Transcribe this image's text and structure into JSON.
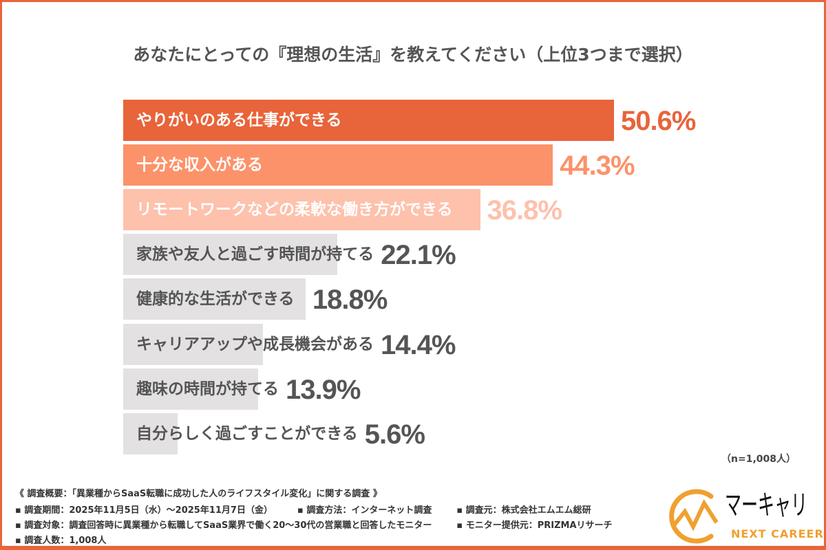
{
  "chart_data": {
    "type": "bar",
    "orientation": "horizontal",
    "title": "あなたにとっての『理想の生活』を教えてください（上位3つまで選択）",
    "categories": [
      "やりがいのある仕事ができる",
      "十分な収入がある",
      "リモートワークなどの柔軟な働き方ができる",
      "家族や友人と過ごす時間が持てる",
      "健康的な生活ができる",
      "キャリアアップや成長機会がある",
      "趣味の時間が持てる",
      "自分らしく過ごすことができる"
    ],
    "values": [
      50.6,
      44.3,
      36.8,
      22.1,
      18.8,
      14.4,
      13.9,
      5.6
    ],
    "value_labels": [
      "50.6%",
      "44.3%",
      "36.8%",
      "22.1%",
      "18.8%",
      "14.4%",
      "13.9%",
      "5.6%"
    ],
    "unit": "%",
    "colors": [
      "#e8643a",
      "#fc926a",
      "#fdc1ac",
      "#e3e1e1",
      "#e3e1e1",
      "#e3e1e1",
      "#e3e1e1",
      "#e3e1e1"
    ],
    "label_colors": [
      "#ffffff",
      "#ffffff",
      "#ffffff",
      "#555555",
      "#555555",
      "#555555",
      "#555555",
      "#555555"
    ],
    "value_colors": [
      "#e8643a",
      "#fc926a",
      "#fdc1ac",
      "#555555",
      "#555555",
      "#555555",
      "#555555",
      "#555555"
    ],
    "grid": false,
    "sample_note": "（n=1,008人）"
  },
  "footer": {
    "overview": "《 調査概要：「異業種からSaaS転職に成功した人のライフスタイル変化」に関する調査 》",
    "period": "▪ 調査期間：2025年11月5日（水）〜2025年11月7日（金）",
    "method": "▪ 調査方法：インターネット調査",
    "source": "▪ 調査元：株式会社エムエム総研",
    "target": "▪ 調査対象：調査回答時に異業種から転職してSaaS業界で働く20〜30代の営業職と回答したモニター",
    "provider": "▪ モニター提供元：PRIZMAリサーチ",
    "count": "▪ 調査人数：1,008人"
  },
  "logo": {
    "jp": "マーキャリ",
    "en": "NEXT CAREER",
    "color": "#f0a030"
  },
  "frame_color": "#e8643a"
}
